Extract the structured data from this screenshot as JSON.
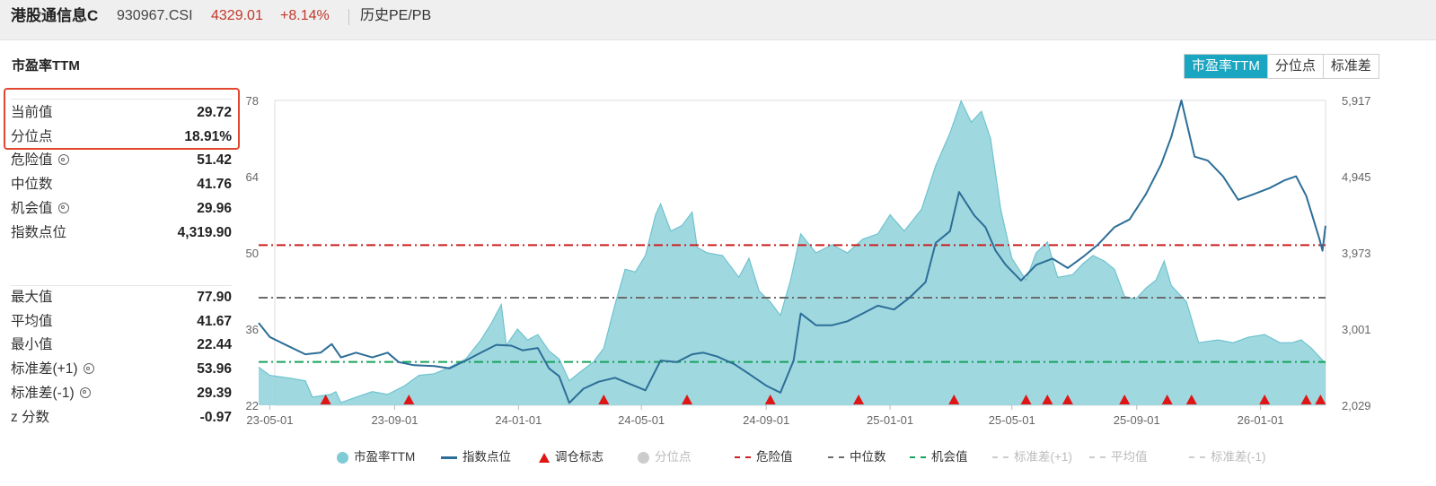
{
  "header": {
    "index_name": "港股通信息C",
    "code": "930967.CSI",
    "price": "4329.01",
    "change": "+8.14%",
    "tab_label": "历史PE/PB"
  },
  "section_title": "市盈率TTM",
  "tabs": [
    {
      "label": "市盈率TTM",
      "active": true
    },
    {
      "label": "分位点",
      "active": false
    },
    {
      "label": "标准差",
      "active": false
    }
  ],
  "stats_top": [
    {
      "label": "当前值",
      "value": "29.72",
      "gear": false
    },
    {
      "label": "分位点",
      "value": "18.91%",
      "gear": false
    },
    {
      "label": "危险值",
      "value": "51.42",
      "gear": true
    },
    {
      "label": "中位数",
      "value": "41.76",
      "gear": false
    },
    {
      "label": "机会值",
      "value": "29.96",
      "gear": true
    },
    {
      "label": "指数点位",
      "value": "4,319.90",
      "gear": false
    }
  ],
  "stats_bottom": [
    {
      "label": "最大值",
      "value": "77.90",
      "gear": false
    },
    {
      "label": "平均值",
      "value": "41.67",
      "gear": false
    },
    {
      "label": "最小值",
      "value": "22.44",
      "gear": false
    },
    {
      "label": "标准差(+1)",
      "value": "53.96",
      "gear": true
    },
    {
      "label": "标准差(-1)",
      "value": "29.39",
      "gear": true
    },
    {
      "label": "z 分数",
      "value": "-0.97",
      "gear": false
    }
  ],
  "legend": [
    {
      "label": "市盈率TTM",
      "icon": "circle",
      "color": "#7fcbd6",
      "dim": false
    },
    {
      "label": "指数点位",
      "icon": "line",
      "color": "#2c6e97",
      "dim": false
    },
    {
      "label": "调仓标志",
      "icon": "triangle",
      "color": "#e01515",
      "dim": false
    },
    {
      "label": "分位点",
      "icon": "circle",
      "color": "#cccccc",
      "dim": true
    },
    {
      "label": "危险值",
      "icon": "dash",
      "color": "#cc1f1f",
      "dim": false
    },
    {
      "label": "中位数",
      "icon": "dash",
      "color": "#6b6b6b",
      "dim": false
    },
    {
      "label": "机会值",
      "icon": "dash",
      "color": "#17a35b",
      "dim": false
    },
    {
      "label": "标准差(+1)",
      "icon": "dash",
      "color": "#cccccc",
      "dim": true
    },
    {
      "label": "平均值",
      "icon": "dash",
      "color": "#cccccc",
      "dim": true
    },
    {
      "label": "标准差(-1)",
      "icon": "dash",
      "color": "#cccccc",
      "dim": true
    }
  ],
  "chart_data": {
    "type": "area",
    "x_start": "2023-04-20",
    "x_end": "2026-03-06",
    "x_ticks": [
      "23-05-01",
      "23-09-01",
      "24-01-01",
      "24-05-01",
      "24-09-01",
      "25-01-01",
      "25-05-01",
      "25-09-01",
      "26-01-01"
    ],
    "y_left": {
      "ticks": [
        "22",
        "36",
        "50",
        "64",
        "78"
      ],
      "min": 22,
      "max": 78
    },
    "y_right": {
      "ticks": [
        "2,029",
        "3,001",
        "3,973",
        "4,945",
        "5,917"
      ],
      "min": 2029,
      "max": 5917
    },
    "reference_lines": [
      {
        "name": "危险值",
        "value": 51.42,
        "color": "#cc1f1f"
      },
      {
        "name": "中位数",
        "value": 41.76,
        "color": "#6b6b6b"
      },
      {
        "name": "机会值",
        "value": 29.96,
        "color": "#17a35b"
      }
    ],
    "series": [
      {
        "name": "市盈率TTM",
        "axis": "left",
        "color": "#7fcbd6",
        "points": [
          [
            "2023-04-20",
            29.0
          ],
          [
            "2023-05-01",
            27.5
          ],
          [
            "2023-05-20",
            27.0
          ],
          [
            "2023-06-05",
            26.5
          ],
          [
            "2023-06-12",
            23.5
          ],
          [
            "2023-06-30",
            24.0
          ],
          [
            "2023-07-05",
            24.5
          ],
          [
            "2023-07-10",
            22.5
          ],
          [
            "2023-07-25",
            23.5
          ],
          [
            "2023-08-10",
            24.5
          ],
          [
            "2023-08-25",
            24.0
          ],
          [
            "2023-09-10",
            25.5
          ],
          [
            "2023-09-25",
            27.5
          ],
          [
            "2023-10-10",
            27.8
          ],
          [
            "2023-10-25",
            29.0
          ],
          [
            "2023-11-10",
            30.5
          ],
          [
            "2023-11-25",
            34.0
          ],
          [
            "2023-12-05",
            37.0
          ],
          [
            "2023-12-15",
            40.5
          ],
          [
            "2023-12-20",
            33.0
          ],
          [
            "2023-12-31",
            36.0
          ],
          [
            "2024-01-10",
            34.0
          ],
          [
            "2024-01-20",
            35.0
          ],
          [
            "2024-01-31",
            32.0
          ],
          [
            "2024-02-10",
            30.5
          ],
          [
            "2024-02-20",
            26.5
          ],
          [
            "2024-03-01",
            28.0
          ],
          [
            "2024-03-15",
            30.0
          ],
          [
            "2024-03-25",
            32.5
          ],
          [
            "2024-04-05",
            40.5
          ],
          [
            "2024-04-15",
            47.0
          ],
          [
            "2024-04-25",
            46.5
          ],
          [
            "2024-05-05",
            49.5
          ],
          [
            "2024-05-15",
            57.0
          ],
          [
            "2024-05-20",
            59.0
          ],
          [
            "2024-05-30",
            54.0
          ],
          [
            "2024-06-10",
            55.0
          ],
          [
            "2024-06-20",
            57.5
          ],
          [
            "2024-06-25",
            51.0
          ],
          [
            "2024-07-05",
            50.0
          ],
          [
            "2024-07-20",
            49.5
          ],
          [
            "2024-08-05",
            45.5
          ],
          [
            "2024-08-15",
            49.0
          ],
          [
            "2024-08-25",
            43.0
          ],
          [
            "2024-09-05",
            41.0
          ],
          [
            "2024-09-15",
            38.5
          ],
          [
            "2024-09-25",
            45.0
          ],
          [
            "2024-10-05",
            53.5
          ],
          [
            "2024-10-20",
            50.0
          ],
          [
            "2024-11-05",
            51.5
          ],
          [
            "2024-11-20",
            50.0
          ],
          [
            "2024-12-05",
            52.5
          ],
          [
            "2024-12-20",
            53.5
          ],
          [
            "2025-01-01",
            57.0
          ],
          [
            "2025-01-15",
            54.0
          ],
          [
            "2025-02-01",
            58.0
          ],
          [
            "2025-02-15",
            66.0
          ],
          [
            "2025-03-01",
            72.0
          ],
          [
            "2025-03-12",
            77.9
          ],
          [
            "2025-03-22",
            74.0
          ],
          [
            "2025-04-01",
            76.0
          ],
          [
            "2025-04-10",
            71.0
          ],
          [
            "2025-04-20",
            58.0
          ],
          [
            "2025-05-01",
            49.0
          ],
          [
            "2025-05-15",
            45.0
          ],
          [
            "2025-05-25",
            50.0
          ],
          [
            "2025-06-05",
            52.0
          ],
          [
            "2025-06-15",
            45.5
          ],
          [
            "2025-06-30",
            46.0
          ],
          [
            "2025-07-10",
            48.0
          ],
          [
            "2025-07-20",
            49.5
          ],
          [
            "2025-07-31",
            48.5
          ],
          [
            "2025-08-10",
            47.0
          ],
          [
            "2025-08-20",
            42.0
          ],
          [
            "2025-08-31",
            41.5
          ],
          [
            "2025-09-10",
            43.5
          ],
          [
            "2025-09-20",
            45.0
          ],
          [
            "2025-09-28",
            48.5
          ],
          [
            "2025-10-05",
            44.0
          ],
          [
            "2025-10-20",
            41.0
          ],
          [
            "2025-11-01",
            33.5
          ],
          [
            "2025-11-20",
            34.0
          ],
          [
            "2025-12-05",
            33.5
          ],
          [
            "2025-12-20",
            34.5
          ],
          [
            "2026-01-05",
            35.0
          ],
          [
            "2026-01-20",
            33.5
          ],
          [
            "2026-02-01",
            33.5
          ],
          [
            "2026-02-10",
            34.0
          ],
          [
            "2026-02-20",
            32.5
          ],
          [
            "2026-03-06",
            29.7
          ]
        ]
      },
      {
        "name": "指数点位",
        "axis": "right",
        "color": "#2c6e97",
        "points": [
          [
            "2023-04-20",
            3080
          ],
          [
            "2023-05-01",
            2900
          ],
          [
            "2023-05-15",
            2810
          ],
          [
            "2023-06-05",
            2680
          ],
          [
            "2023-06-20",
            2700
          ],
          [
            "2023-07-01",
            2810
          ],
          [
            "2023-07-10",
            2640
          ],
          [
            "2023-07-25",
            2700
          ],
          [
            "2023-08-10",
            2640
          ],
          [
            "2023-08-25",
            2700
          ],
          [
            "2023-09-05",
            2580
          ],
          [
            "2023-09-20",
            2540
          ],
          [
            "2023-10-10",
            2530
          ],
          [
            "2023-10-25",
            2500
          ],
          [
            "2023-11-10",
            2600
          ],
          [
            "2023-11-25",
            2700
          ],
          [
            "2023-12-10",
            2800
          ],
          [
            "2023-12-25",
            2790
          ],
          [
            "2024-01-05",
            2730
          ],
          [
            "2024-01-20",
            2760
          ],
          [
            "2024-01-31",
            2500
          ],
          [
            "2024-02-10",
            2400
          ],
          [
            "2024-02-20",
            2060
          ],
          [
            "2024-03-05",
            2240
          ],
          [
            "2024-03-20",
            2330
          ],
          [
            "2024-04-05",
            2380
          ],
          [
            "2024-04-20",
            2300
          ],
          [
            "2024-05-05",
            2220
          ],
          [
            "2024-05-20",
            2600
          ],
          [
            "2024-06-05",
            2580
          ],
          [
            "2024-06-20",
            2680
          ],
          [
            "2024-07-01",
            2700
          ],
          [
            "2024-07-15",
            2650
          ],
          [
            "2024-08-01",
            2550
          ],
          [
            "2024-08-15",
            2430
          ],
          [
            "2024-09-01",
            2280
          ],
          [
            "2024-09-15",
            2190
          ],
          [
            "2024-09-28",
            2600
          ],
          [
            "2024-10-05",
            3200
          ],
          [
            "2024-10-20",
            3050
          ],
          [
            "2024-11-05",
            3050
          ],
          [
            "2024-11-20",
            3100
          ],
          [
            "2024-12-05",
            3200
          ],
          [
            "2024-12-20",
            3300
          ],
          [
            "2025-01-05",
            3250
          ],
          [
            "2025-01-20",
            3400
          ],
          [
            "2025-02-05",
            3600
          ],
          [
            "2025-02-15",
            4100
          ],
          [
            "2025-03-01",
            4250
          ],
          [
            "2025-03-10",
            4750
          ],
          [
            "2025-03-25",
            4450
          ],
          [
            "2025-04-05",
            4300
          ],
          [
            "2025-04-15",
            4000
          ],
          [
            "2025-04-25",
            3820
          ],
          [
            "2025-05-10",
            3620
          ],
          [
            "2025-05-25",
            3820
          ],
          [
            "2025-06-10",
            3900
          ],
          [
            "2025-06-25",
            3780
          ],
          [
            "2025-07-10",
            3920
          ],
          [
            "2025-07-25",
            4080
          ],
          [
            "2025-08-10",
            4300
          ],
          [
            "2025-08-25",
            4400
          ],
          [
            "2025-09-10",
            4720
          ],
          [
            "2025-09-25",
            5100
          ],
          [
            "2025-10-05",
            5450
          ],
          [
            "2025-10-15",
            5917
          ],
          [
            "2025-10-28",
            5200
          ],
          [
            "2025-11-10",
            5150
          ],
          [
            "2025-11-25",
            4950
          ],
          [
            "2025-12-10",
            4650
          ],
          [
            "2025-12-25",
            4720
          ],
          [
            "2026-01-10",
            4800
          ],
          [
            "2026-01-25",
            4900
          ],
          [
            "2026-02-05",
            4950
          ],
          [
            "2026-02-15",
            4700
          ],
          [
            "2026-02-28",
            4150
          ],
          [
            "2026-03-03",
            4000
          ],
          [
            "2026-03-06",
            4320
          ]
        ]
      }
    ],
    "rebalance_markers": [
      "2023-06-25",
      "2023-09-15",
      "2024-03-25",
      "2024-06-15",
      "2024-09-05",
      "2024-12-01",
      "2025-03-05",
      "2025-05-15",
      "2025-06-05",
      "2025-06-25",
      "2025-08-20",
      "2025-10-01",
      "2025-10-25",
      "2026-01-05",
      "2026-02-15",
      "2026-03-01"
    ]
  }
}
